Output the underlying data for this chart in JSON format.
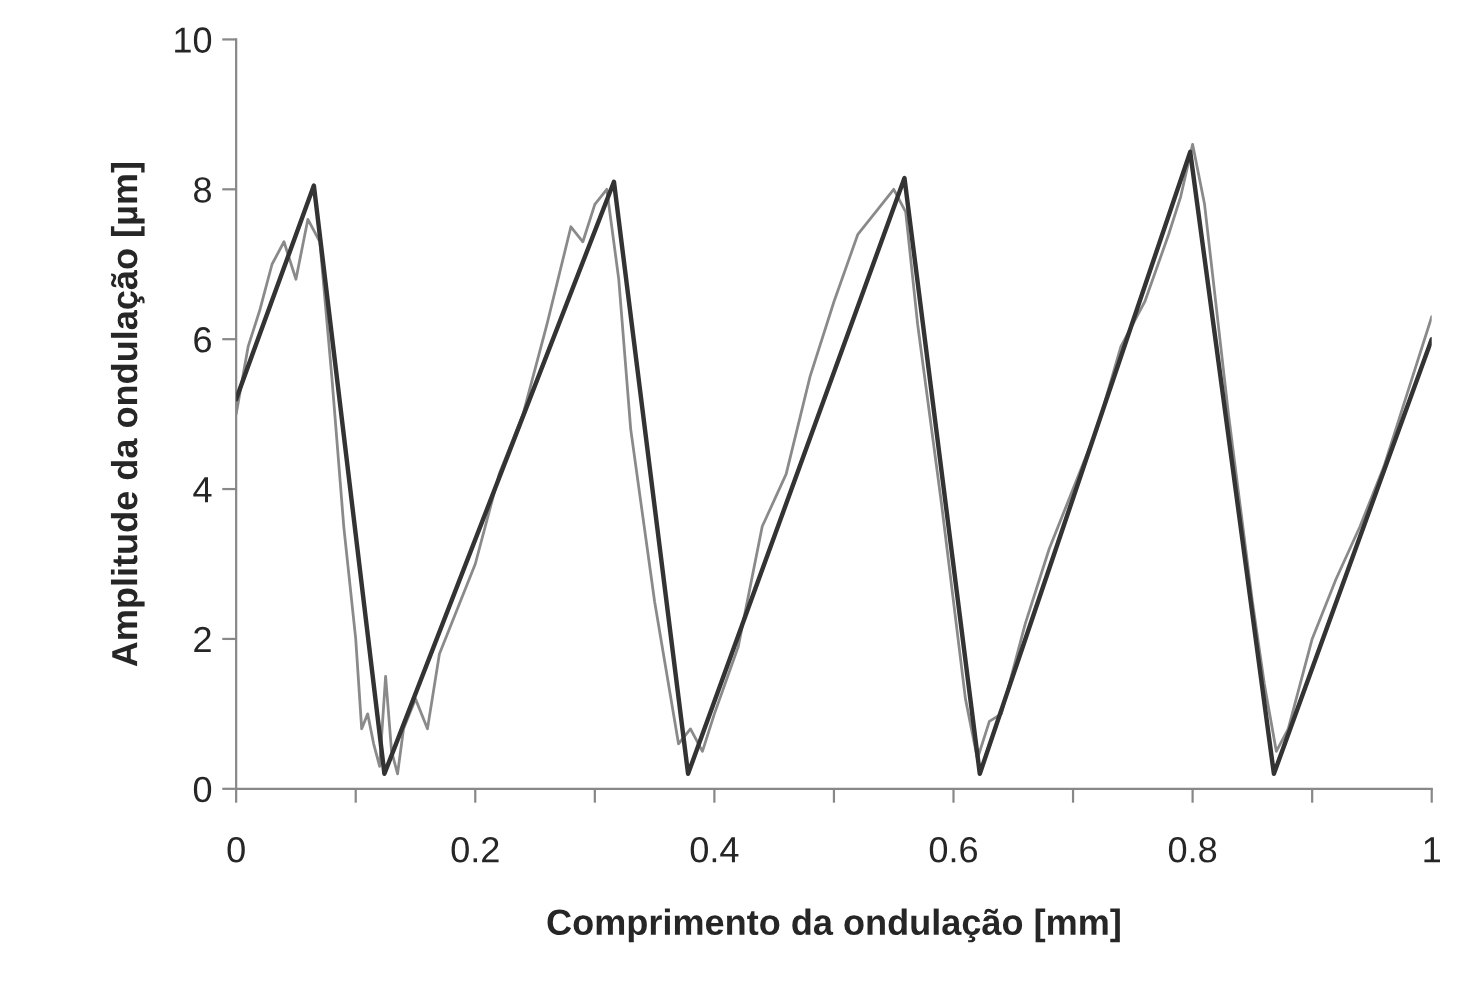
{
  "chart_data": {
    "type": "line",
    "xlabel": "Comprimento da ondulação [mm]",
    "ylabel": "Amplitude da ondulação [µm]",
    "xlim": [
      0,
      1
    ],
    "ylim": [
      0,
      10
    ],
    "xticks": [
      0,
      {
        "value": 0.1,
        "label": null
      },
      0.2,
      {
        "value": 0.3,
        "label": null
      },
      0.4,
      {
        "value": 0.5,
        "label": null
      },
      0.6,
      {
        "value": 0.7,
        "label": null
      },
      0.8,
      {
        "value": 0.9,
        "label": null
      },
      1
    ],
    "yticks": [
      0,
      2,
      4,
      6,
      8,
      10
    ],
    "grid": false,
    "marker": "none",
    "line_style": "solid",
    "series": [
      {
        "color": "#333333",
        "x": [
          0,
          0.065,
          0.124,
          0.316,
          0.378,
          0.559,
          0.622,
          0.798,
          0.868,
          1.0
        ],
        "values": [
          5.2,
          8.05,
          0.2,
          8.1,
          0.2,
          8.15,
          0.2,
          8.5,
          0.2,
          6.0
        ]
      },
      {
        "color": "#8a8a8a",
        "x": [
          0,
          0.01,
          0.02,
          0.03,
          0.04,
          0.05,
          0.06,
          0.07,
          0.08,
          0.09,
          0.1,
          0.105,
          0.11,
          0.115,
          0.12,
          0.125,
          0.13,
          0.135,
          0.14,
          0.15,
          0.16,
          0.17,
          0.18,
          0.2,
          0.22,
          0.24,
          0.26,
          0.28,
          0.29,
          0.3,
          0.31,
          0.32,
          0.33,
          0.35,
          0.37,
          0.38,
          0.39,
          0.4,
          0.42,
          0.44,
          0.46,
          0.48,
          0.5,
          0.52,
          0.54,
          0.55,
          0.56,
          0.57,
          0.59,
          0.61,
          0.62,
          0.63,
          0.64,
          0.66,
          0.68,
          0.7,
          0.72,
          0.74,
          0.76,
          0.78,
          0.79,
          0.8,
          0.81,
          0.83,
          0.85,
          0.86,
          0.87,
          0.88,
          0.9,
          0.92,
          0.94,
          0.96,
          0.98,
          1.0
        ],
        "values": [
          5.0,
          5.9,
          6.4,
          7.0,
          7.3,
          6.8,
          7.6,
          7.3,
          5.5,
          3.5,
          2.0,
          0.8,
          1.0,
          0.6,
          0.3,
          1.5,
          0.5,
          0.2,
          0.8,
          1.2,
          0.8,
          1.8,
          2.2,
          3.0,
          4.2,
          5.0,
          6.2,
          7.5,
          7.3,
          7.8,
          8.0,
          6.8,
          4.8,
          2.5,
          0.6,
          0.8,
          0.5,
          1.0,
          1.9,
          3.5,
          4.2,
          5.5,
          6.5,
          7.4,
          7.8,
          8.0,
          7.7,
          6.2,
          3.8,
          1.2,
          0.4,
          0.9,
          1.0,
          2.2,
          3.2,
          4.0,
          4.8,
          5.9,
          6.5,
          7.4,
          7.9,
          8.6,
          7.8,
          5.0,
          2.5,
          1.4,
          0.5,
          0.8,
          2.0,
          2.8,
          3.5,
          4.3,
          5.3,
          6.3
        ]
      }
    ]
  }
}
